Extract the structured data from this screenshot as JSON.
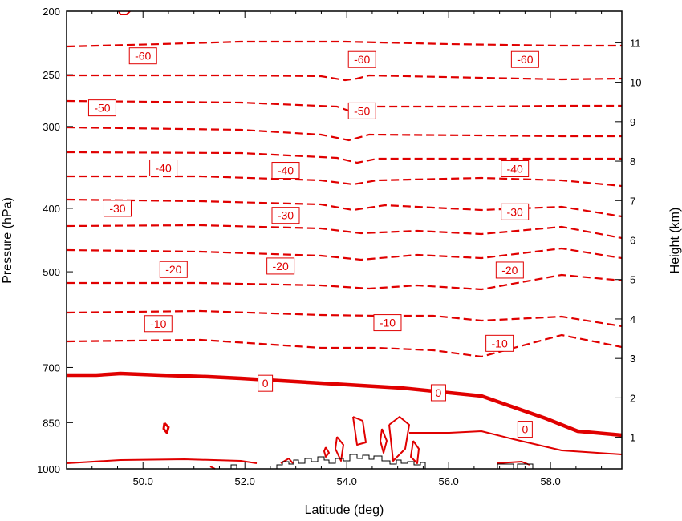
{
  "chart_data": {
    "type": "contour",
    "xlabel": "Latitude (deg)",
    "ylabel_left": "Pressure (hPa)",
    "ylabel_right": "Height (km)",
    "xlim": [
      48.5,
      59.4
    ],
    "x_ticks": [
      "50.0",
      "52.0",
      "54.0",
      "56.0",
      "58.0"
    ],
    "y_left_ticks": [
      "200",
      "250",
      "300",
      "400",
      "500",
      "700",
      "850",
      "1000"
    ],
    "y_right_ticks": [
      "1",
      "2",
      "3",
      "4",
      "5",
      "6",
      "7",
      "8",
      "9",
      "10",
      "11"
    ],
    "contour_color": "#e00000",
    "terrain_color": "#000000",
    "contour_labels": [
      {
        "text": "-60",
        "x": 50.0,
        "y": 234
      },
      {
        "text": "-60",
        "x": 54.3,
        "y": 237
      },
      {
        "text": "-60",
        "x": 57.5,
        "y": 237
      },
      {
        "text": "-50",
        "x": 49.2,
        "y": 281
      },
      {
        "text": "-50",
        "x": 54.3,
        "y": 284
      },
      {
        "text": "-40",
        "x": 50.4,
        "y": 347
      },
      {
        "text": "-40",
        "x": 52.8,
        "y": 350
      },
      {
        "text": "-40",
        "x": 57.3,
        "y": 348
      },
      {
        "text": "-30",
        "x": 49.5,
        "y": 400
      },
      {
        "text": "-30",
        "x": 52.8,
        "y": 410
      },
      {
        "text": "-30",
        "x": 57.3,
        "y": 405
      },
      {
        "text": "-20",
        "x": 50.6,
        "y": 496
      },
      {
        "text": "-20",
        "x": 52.7,
        "y": 490
      },
      {
        "text": "-20",
        "x": 57.2,
        "y": 497
      },
      {
        "text": "-10",
        "x": 50.3,
        "y": 600
      },
      {
        "text": "-10",
        "x": 54.8,
        "y": 598
      },
      {
        "text": "-10",
        "x": 57.0,
        "y": 643
      },
      {
        "text": "0",
        "x": 52.4,
        "y": 740
      },
      {
        "text": "0",
        "x": 55.8,
        "y": 765
      },
      {
        "text": "0",
        "x": 57.5,
        "y": 870
      }
    ]
  }
}
